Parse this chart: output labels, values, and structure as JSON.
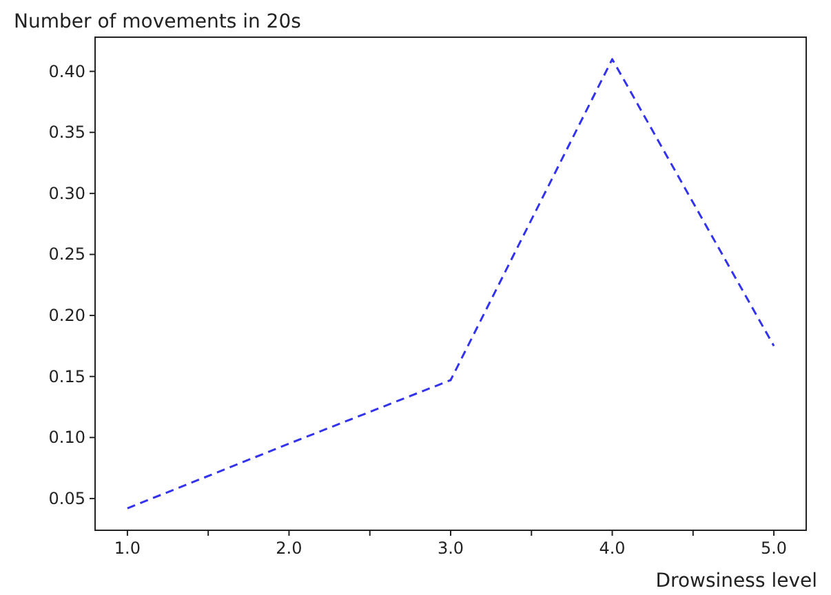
{
  "chart_data": {
    "type": "line",
    "ylabel": "Number of movements in 20s",
    "xlabel": "Drowsiness level",
    "x": [
      1,
      2,
      3,
      4,
      5
    ],
    "series": [
      {
        "color": "#3333ee",
        "values": [
          0.042,
          0.095,
          0.147,
          0.41,
          0.175
        ]
      }
    ],
    "xlim": [
      0.8,
      5.2
    ],
    "ylim": [
      0.024,
      0.428
    ],
    "xticks": [
      {
        "value": 1,
        "label": "1.0"
      },
      {
        "value": 1.5,
        "label": null
      },
      {
        "value": 2,
        "label": "2.0"
      },
      {
        "value": 2.5,
        "label": null
      },
      {
        "value": 3,
        "label": "3.0"
      },
      {
        "value": 3.5,
        "label": null
      },
      {
        "value": 4,
        "label": "4.0"
      },
      {
        "value": 4.5,
        "label": null
      },
      {
        "value": 5,
        "label": "5.0"
      }
    ],
    "yticks": [
      {
        "value": 0.05,
        "label": "0.05"
      },
      {
        "value": 0.1,
        "label": "0.10"
      },
      {
        "value": 0.15,
        "label": "0.15"
      },
      {
        "value": 0.2,
        "label": "0.20"
      },
      {
        "value": 0.25,
        "label": "0.25"
      },
      {
        "value": 0.3,
        "label": "0.30"
      },
      {
        "value": 0.35,
        "label": "0.35"
      },
      {
        "value": 0.4,
        "label": "0.40"
      }
    ],
    "line_style": "dashed",
    "marker": "none"
  }
}
